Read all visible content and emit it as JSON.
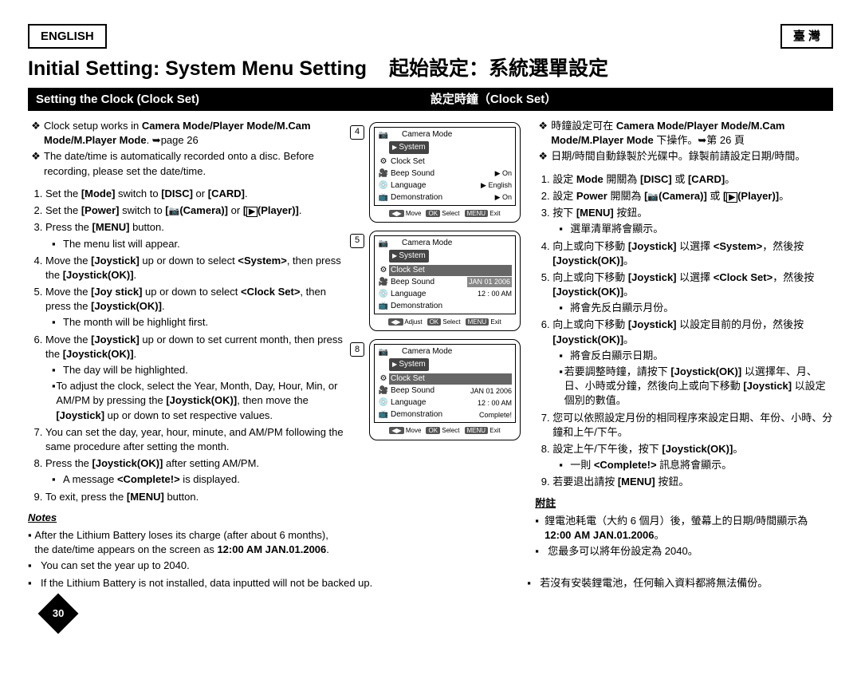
{
  "header": {
    "left": "ENGLISH",
    "right": "臺 灣"
  },
  "titles": {
    "en": "Initial Setting: System Menu Setting",
    "zh": "起始設定：系統選單設定"
  },
  "section": {
    "en": "Setting the Clock (Clock Set)",
    "zh": "設定時鐘（Clock Set）"
  },
  "en": {
    "intro": [
      "Clock setup works in <b>Camera Mode/Player Mode/M.Cam Mode/M.Player Mode</b>. ➥page 26",
      "The date/time is automatically recorded onto a disc. Before recording, please set the date/time."
    ],
    "steps": [
      "Set the <b>[Mode]</b> switch to <b>[DISC]</b> or <b>[CARD]</b>.",
      "Set the <b>[Power]</b> switch to <b>[<span class='icon-cam'></span>(Camera)]</b> or <b>[<span class='icon-play'></span>(Player)]</b>.",
      "Press the <b>[MENU]</b> button.",
      "Move the <b>[Joystick]</b> up or down to select <b>&lt;System&gt;</b>, then press the <b>[Joystick(OK)]</b>.",
      "Move the <b>[Joy stick]</b> up or down to select <b>&lt;Clock Set&gt;</b>, then press the <b>[Joystick(OK)]</b>.",
      "Move the <b>[Joystick]</b> up or down to set current month, then press the <b>[Joystick(OK)]</b>.",
      "You can set the day, year, hour, minute, and AM/PM following the same procedure after setting the month.",
      "Press the <b>[Joystick(OK)]</b> after setting AM/PM.",
      "To exit, press the <b>[MENU]</b> button."
    ],
    "sub3": "The menu list will appear.",
    "sub5": "The month will be highlight first.",
    "sub6a": "The day will be highlighted.",
    "sub6b": "To adjust the clock, select the Year, Month, Day, Hour, Min, or AM/PM by pressing the <b>[Joystick(OK)]</b>, then move the <b>[Joystick]</b> up or down to set respective values.",
    "sub8": "A message <b>&lt;Complete!&gt;</b> is displayed.",
    "notesLabel": "Notes",
    "notes": [
      "After the Lithium Battery loses its charge (after about 6 months), the date/time appears on the screen as <b>12:00 AM JAN.01.2006</b>.",
      "You can set the year up to 2040.",
      "If the Lithium Battery is not installed, data inputted will not be backed up."
    ]
  },
  "zh": {
    "intro": [
      "時鐘設定可在 <b>Camera Mode/Player Mode/M.Cam Mode/M.Player Mode</b> 下操作。➥第 26 頁",
      "日期/時間自動錄製於光碟中。錄製前請設定日期/時間。"
    ],
    "steps": [
      "設定 <b>Mode</b> 開關為 <b>[DISC]</b> 或 <b>[CARD]</b>。",
      "設定 <b>Power</b> 開關為 <b>[<span class='icon-cam'></span>(Camera)]</b> 或 <b>[<span class='icon-play'></span>(Player)]</b>。",
      "按下 <b>[MENU]</b> 按鈕。",
      "向上或向下移動 <b>[Joystick]</b> 以選擇 <b>&lt;System&gt;</b>，然後按 <b>[Joystick(OK)]</b>。",
      "向上或向下移動 <b>[Joystick]</b> 以選擇 <b>&lt;Clock Set&gt;</b>，然後按 <b>[Joystick(OK)]</b>。",
      "向上或向下移動 <b>[Joystick]</b> 以設定目前的月份，然後按 <b>[Joystick(OK)]</b>。",
      "您可以依照設定月份的相同程序來設定日期、年份、小時、分鐘和上午/下午。",
      "設定上午/下午後，按下 <b>[Joystick(OK)]</b>。",
      "若要退出請按 <b>[MENU]</b> 按鈕。"
    ],
    "sub3": "選單清單將會顯示。",
    "sub5": "將會先反白顯示月份。",
    "sub6a": "將會反白顯示日期。",
    "sub6b": "若要調整時鐘，請按下 <b>[Joystick(OK)]</b> 以選擇年、月、日、小時或分鐘，然後向上或向下移動 <b>[Joystick]</b> 以設定個別的數值。",
    "sub8": "一則 <b>&lt;Complete!&gt;</b> 訊息將會顯示。",
    "notesLabel": "附註",
    "notes": [
      "鋰電池耗電（大約 6 個月）後，螢幕上的日期/時間顯示為 <b>12:00 AM JAN.01.2006</b>。",
      "您最多可以將年份設定為 2040。",
      "若沒有安裝鋰電池，任何輸入資料都將無法備份。"
    ]
  },
  "figs": [
    {
      "num": "4",
      "mode": "Camera Mode",
      "header": "System",
      "rows": [
        {
          "label": "Clock Set",
          "val": ""
        },
        {
          "label": "Beep Sound",
          "val": "▶ On"
        },
        {
          "label": "Language",
          "val": "▶ English"
        },
        {
          "label": "Demonstration",
          "val": "▶ On"
        }
      ],
      "foot": [
        "Move",
        "Select",
        "Exit"
      ],
      "footIcons": [
        "◀▶",
        "OK",
        "MENU"
      ]
    },
    {
      "num": "5",
      "mode": "Camera Mode",
      "header": "System",
      "rows": [
        {
          "label": "Clock Set",
          "val": "",
          "sel": true
        },
        {
          "label": "Beep Sound",
          "val": "JAN 01 2006",
          "bgval": true
        },
        {
          "label": "Language",
          "val": "12 : 00 AM"
        },
        {
          "label": "Demonstration",
          "val": ""
        }
      ],
      "foot": [
        "Adjust",
        "Select",
        "Exit"
      ],
      "footIcons": [
        "◀▶",
        "OK",
        "MENU"
      ]
    },
    {
      "num": "8",
      "mode": "Camera Mode",
      "header": "System",
      "rows": [
        {
          "label": "Clock Set",
          "val": "",
          "sel": true
        },
        {
          "label": "Beep Sound",
          "val": "JAN 01 2006"
        },
        {
          "label": "Language",
          "val": "12 : 00 AM"
        },
        {
          "label": "Demonstration",
          "val": "Complete!"
        }
      ],
      "foot": [
        "Move",
        "Select",
        "Exit"
      ],
      "footIcons": [
        "◀▶",
        "OK",
        "MENU"
      ]
    }
  ],
  "pageNum": "30"
}
